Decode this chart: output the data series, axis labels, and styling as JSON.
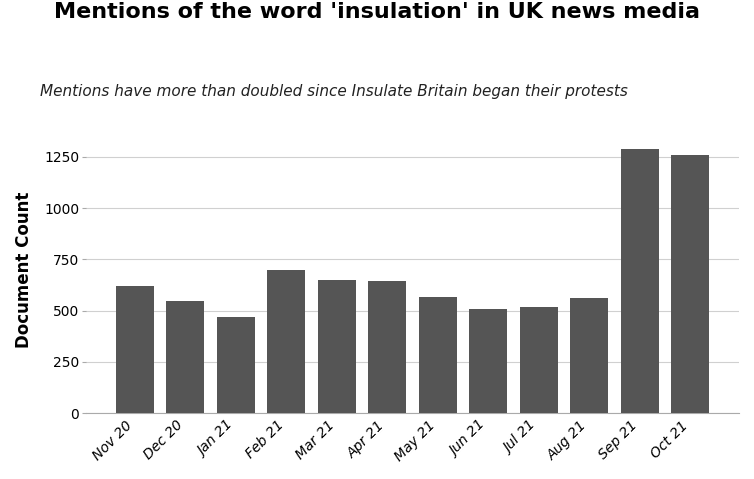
{
  "title": "Mentions of the word 'insulation' in UK news media",
  "subtitle": "Mentions have more than doubled since Insulate Britain began their protests",
  "ylabel": "Document Count",
  "categories": [
    "Nov 20",
    "Dec 20",
    "Jan 21",
    "Feb 21",
    "Mar 21",
    "Apr 21",
    "May 21",
    "Jun 21",
    "Jul 21",
    "Aug 21",
    "Sep 21",
    "Oct 21"
  ],
  "values": [
    620,
    545,
    470,
    700,
    650,
    645,
    565,
    510,
    520,
    560,
    1290,
    1260
  ],
  "bar_color": "#555555",
  "ylim": [
    0,
    1400
  ],
  "yticks": [
    0,
    250,
    500,
    750,
    1000,
    1250
  ],
  "grid_color": "#d0d0d0",
  "background_color": "#ffffff",
  "title_fontsize": 16,
  "subtitle_fontsize": 11,
  "ylabel_fontsize": 12,
  "tick_fontsize": 10
}
